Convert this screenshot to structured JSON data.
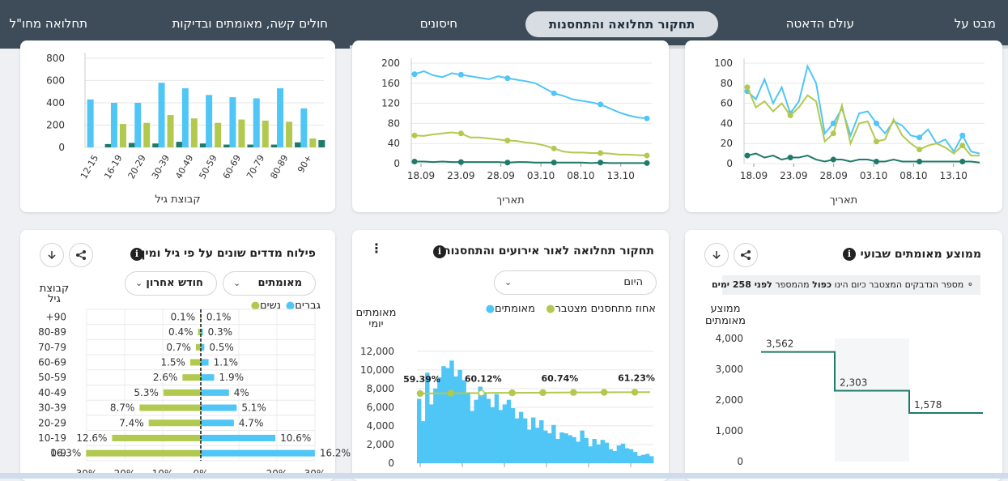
{
  "nav": {
    "items": [
      "מבט על",
      "עולם הדאטה",
      "תחקור תחלואה והתחסנות",
      "חיסונים",
      "חולים קשה, מאומתים ובדיקות",
      "תחלואה מחו\"ל"
    ],
    "active": "תחקור תחלואה והתחסנות"
  },
  "chart_data": [
    {
      "id": "age-bars-top",
      "type": "bar",
      "xlabel": "קבוצת גיל",
      "categories": [
        "12-15",
        "16-19",
        "20-29",
        "30-39",
        "40-49",
        "50-59",
        "60-69",
        "70-79",
        "80-89",
        "90+"
      ],
      "series": [
        {
          "name": "blue",
          "color": "#4fc6f6",
          "values": [
            430,
            400,
            400,
            580,
            530,
            470,
            450,
            440,
            530,
            350
          ]
        },
        {
          "name": "green",
          "color": "#b2c94f",
          "values": [
            0,
            210,
            220,
            290,
            260,
            220,
            250,
            240,
            230,
            80
          ]
        },
        {
          "name": "dark",
          "color": "#1f7a6a",
          "values": [
            30,
            40,
            35,
            50,
            35,
            25,
            25,
            25,
            45,
            65
          ]
        }
      ],
      "yticks": [
        "0",
        "200",
        "400",
        "600",
        "800"
      ],
      "ylim": [
        0,
        850
      ]
    },
    {
      "id": "line-middle-top",
      "type": "line",
      "xlabel": "תאריך",
      "xticks": [
        "18.09",
        "23.09",
        "28.09",
        "03.10",
        "08.10",
        "13.10"
      ],
      "yticks": [
        "0",
        "40",
        "80",
        "120",
        "160",
        "200"
      ],
      "ylim": [
        0,
        200
      ],
      "series": [
        {
          "name": "blue",
          "color": "#4fc6f6",
          "values": [
            178,
            184,
            176,
            172,
            180,
            177,
            174,
            171,
            168,
            174,
            170,
            167,
            164,
            160,
            150,
            140,
            135,
            128,
            125,
            122,
            118,
            110,
            102,
            96,
            92,
            90
          ]
        },
        {
          "name": "green",
          "color": "#b2c94f",
          "values": [
            56,
            55,
            58,
            60,
            62,
            60,
            52,
            52,
            50,
            48,
            46,
            45,
            42,
            40,
            36,
            30,
            24,
            22,
            22,
            21,
            21,
            20,
            18,
            18,
            17,
            16
          ]
        },
        {
          "name": "dark",
          "color": "#1f7a6a",
          "values": [
            4,
            4,
            3,
            4,
            3,
            3,
            3,
            3,
            3,
            3,
            2,
            3,
            3,
            2,
            2,
            2,
            2,
            2,
            2,
            1,
            2,
            1,
            1,
            1,
            1,
            1
          ]
        }
      ]
    },
    {
      "id": "line-right-top",
      "type": "line",
      "xlabel": "תאריך",
      "xticks": [
        "18.09",
        "23.09",
        "28.09",
        "03.10",
        "08.10",
        "13.10"
      ],
      "yticks": [
        "0",
        "20",
        "40",
        "60",
        "80",
        "100"
      ],
      "ylim": [
        0,
        100
      ],
      "series": [
        {
          "name": "blue",
          "color": "#4fc6f6",
          "values": [
            72,
            64,
            84,
            60,
            76,
            50,
            62,
            97,
            80,
            30,
            40,
            55,
            28,
            50,
            52,
            40,
            30,
            42,
            38,
            28,
            26,
            34,
            20,
            24,
            12,
            28,
            12,
            10
          ]
        },
        {
          "name": "green",
          "color": "#b2c94f",
          "values": [
            76,
            56,
            62,
            52,
            60,
            48,
            56,
            68,
            62,
            22,
            30,
            58,
            20,
            40,
            42,
            22,
            24,
            44,
            28,
            20,
            14,
            18,
            20,
            16,
            10,
            18,
            8,
            8
          ]
        },
        {
          "name": "dark",
          "color": "#1f7a6a",
          "values": [
            8,
            10,
            6,
            8,
            4,
            6,
            6,
            8,
            4,
            2,
            4,
            4,
            2,
            4,
            4,
            2,
            2,
            4,
            2,
            2,
            2,
            2,
            2,
            2,
            2,
            2,
            2,
            1
          ]
        }
      ]
    },
    {
      "id": "pyramid",
      "type": "bar",
      "categories": [
        "+90",
        "80-89",
        "70-79",
        "60-69",
        "50-59",
        "40-49",
        "30-39",
        "20-29",
        "10-19",
        "0-9"
      ],
      "series": [
        {
          "name": "גברים",
          "color": "#4fc6f6",
          "values": [
            0.1,
            0.3,
            0.5,
            1.1,
            1.9,
            4,
            5.1,
            4.7,
            10.6,
            16.2
          ],
          "labels": [
            "0.1%",
            "0.3%",
            "0.5%",
            "1.1%",
            "1.9%",
            "4%",
            "5.1%",
            "4.7%",
            "10.6%",
            "16.2%"
          ]
        },
        {
          "name": "נשים",
          "color": "#b2c94f",
          "values": [
            0.1,
            0.4,
            0.7,
            1.5,
            2.6,
            5.3,
            8.7,
            7.4,
            12.6,
            16.3
          ],
          "labels": [
            "0.1%",
            "0.4%",
            "0.7%",
            "1.5%",
            "2.6%",
            "5.3%",
            "8.7%",
            "7.4%",
            "12.6%",
            "16.3%"
          ]
        }
      ],
      "xticks": [
        "30%",
        "20%",
        "10%",
        "0%",
        "20%",
        "30%"
      ],
      "xlim": [
        -30,
        30
      ]
    },
    {
      "id": "daily-cases",
      "type": "bar",
      "ylabel": "מאומתים יומי",
      "yticks": [
        "0",
        "2,000",
        "4,000",
        "6,000",
        "8,000",
        "10,000",
        "12,000"
      ],
      "ylim": [
        0,
        12500
      ],
      "bar_values": [
        6900,
        4500,
        9700,
        6300,
        8000,
        9200,
        10400,
        10200,
        11000,
        9300,
        10000,
        8900,
        7600,
        5600,
        6800,
        8200,
        7600,
        6900,
        6000,
        7400,
        5700,
        6300,
        6800,
        5900,
        4800,
        5500,
        4800,
        3600,
        4900,
        3800,
        4600,
        3500,
        3200,
        4100,
        2600,
        3300,
        3200,
        3000,
        2800,
        2300,
        3500,
        2700,
        1800,
        2600,
        2000,
        2500,
        2200,
        1500,
        1300,
        1900,
        2100,
        1600,
        1500,
        1200,
        800,
        900,
        1000,
        750
      ],
      "line_values": [
        59.39,
        59.6,
        59.8,
        60.0,
        60.12,
        60.3,
        60.4,
        60.5,
        60.6,
        60.74,
        60.85,
        60.95,
        61.05,
        61.15,
        61.23,
        61.3
      ],
      "line_labels": [
        "59.39%",
        "60.12%",
        "60.74%",
        "61.23%"
      ]
    },
    {
      "id": "weekly-avg",
      "type": "line",
      "ylabel": "ממוצע מאומתים",
      "yticks": [
        "0",
        "1,000",
        "2,000",
        "3,000",
        "4,000"
      ],
      "ylim": [
        0,
        4000
      ],
      "values": [
        3562,
        2303,
        1578
      ],
      "labels": [
        "3,562",
        "2,303",
        "1,578"
      ]
    }
  ],
  "cards": {
    "top_left_xlabel": "קבוצת גיל",
    "top_mid_xlabel": "תאריך",
    "top_right_xlabel": "תאריך",
    "pyramid": {
      "title": "פילוח מדדים שונים על פי גיל ומין",
      "select_metric": "מאומתים",
      "select_period": "חודש אחרון",
      "legend_men": "גברים",
      "legend_women": "נשים",
      "axis_title": "קבוצת גיל"
    },
    "events": {
      "title": "תחקור תחלואה לאור אירועים והתחסנות",
      "select_period": "היום",
      "legend_vacc": "אחוז מתחסנים מצטבר",
      "legend_cases": "מאומתים",
      "ylabel": "מאומתים יומי"
    },
    "weekly": {
      "title": "ממוצע מאומתים שבועי",
      "banner_prefix": "מספר הנדבקים המצטבר כיום הינו",
      "banner_bold": "כפול",
      "banner_mid": "מהמספר",
      "banner_end": "לפני 258 ימים",
      "ylabel": "ממוצע מאומתים"
    }
  },
  "icons": {
    "info": "i",
    "share": "share-icon",
    "download": "download-icon",
    "chevron": "chevron-down-icon",
    "bulb": "lightbulb-icon",
    "menu": "more-vert-icon"
  },
  "colors": {
    "blue": "#4fc6f6",
    "green": "#b2c94f",
    "dark": "#1f7a6a",
    "nav": "#3e4c59"
  }
}
